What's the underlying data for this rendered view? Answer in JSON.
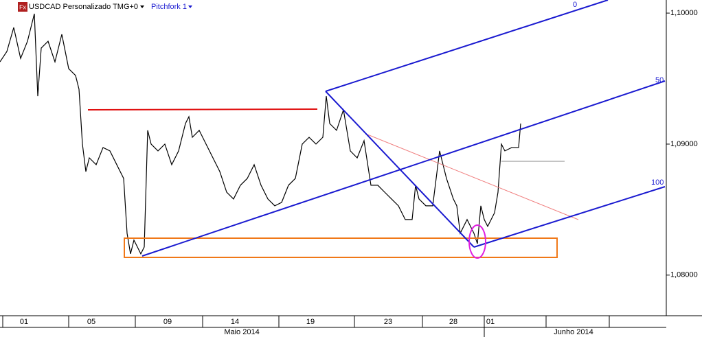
{
  "header": {
    "icon": "Fx",
    "symbol": "USDCAD Personalizado TMG+0",
    "tool": "Pitchfork 1"
  },
  "annotations": {
    "pitchfork_levels": [
      "0",
      "50",
      "100"
    ]
  },
  "chart_data": {
    "type": "line",
    "months": [
      {
        "value": 352,
        "label": "Maio 2014"
      },
      {
        "value": 835,
        "label": "Junho 2014"
      }
    ],
    "xlim": [
      0,
      970
    ],
    "xticks": [
      {
        "value": 35,
        "label": "01"
      },
      {
        "value": 133,
        "label": "05"
      },
      {
        "value": 244,
        "label": "09"
      },
      {
        "value": 342,
        "label": "14"
      },
      {
        "value": 452,
        "label": "19"
      },
      {
        "value": 565,
        "label": "23"
      },
      {
        "value": 660,
        "label": "28"
      },
      {
        "value": 714,
        "label": "01"
      }
    ],
    "ylim": [
      1.0769,
      1.101
    ],
    "yticks": [
      {
        "value": 1.08,
        "label": "1,08000"
      },
      {
        "value": 1.09,
        "label": "1,09000"
      },
      {
        "value": 1.1,
        "label": "1,10000"
      }
    ],
    "series": [
      {
        "color": "#000000",
        "x": [
          0,
          10,
          20,
          30,
          40,
          50,
          55,
          60,
          70,
          80,
          90,
          100,
          110,
          115,
          120,
          125,
          130,
          140,
          150,
          160,
          170,
          180,
          185,
          190,
          195,
          200,
          205,
          210,
          215,
          220,
          230,
          240,
          250,
          260,
          270,
          275,
          280,
          290,
          300,
          310,
          320,
          330,
          340,
          350,
          360,
          370,
          380,
          390,
          400,
          410,
          420,
          430,
          440,
          450,
          460,
          470,
          475,
          480,
          490,
          500,
          510,
          520,
          530,
          540,
          550,
          560,
          570,
          580,
          590,
          600,
          605,
          610,
          620,
          630,
          640,
          650,
          660,
          665,
          670,
          680,
          690,
          695,
          700,
          705,
          710,
          720,
          725,
          730,
          735,
          745,
          755,
          758
        ],
        "values": [
          1.09628,
          1.09707,
          1.0989,
          1.09654,
          1.09785,
          1.09995,
          1.09366,
          1.09733,
          1.09785,
          1.09628,
          1.09838,
          1.09576,
          1.09524,
          1.09419,
          1.09,
          1.0879,
          1.08895,
          1.08843,
          1.08974,
          1.08948,
          1.08843,
          1.08738,
          1.08319,
          1.08162,
          1.08267,
          1.08215,
          1.08162,
          1.08215,
          1.09105,
          1.09,
          1.08948,
          1.09,
          1.08843,
          1.08948,
          1.09157,
          1.09209,
          1.09052,
          1.09105,
          1.09,
          1.08895,
          1.0879,
          1.08633,
          1.08581,
          1.08686,
          1.08738,
          1.08843,
          1.08686,
          1.08581,
          1.08529,
          1.08555,
          1.08686,
          1.08738,
          1.09,
          1.09052,
          1.09,
          1.09052,
          1.09366,
          1.09157,
          1.09105,
          1.09262,
          1.08948,
          1.08895,
          1.09026,
          1.08686,
          1.08686,
          1.08633,
          1.08581,
          1.08529,
          1.08424,
          1.08424,
          1.08686,
          1.08581,
          1.08529,
          1.08529,
          1.08948,
          1.08738,
          1.08581,
          1.08529,
          1.08319,
          1.08424,
          1.08319,
          1.0824,
          1.08529,
          1.08424,
          1.08372,
          1.08476,
          1.08633,
          1.09,
          1.08948,
          1.08974,
          1.08974,
          1.09157
        ]
      }
    ]
  }
}
